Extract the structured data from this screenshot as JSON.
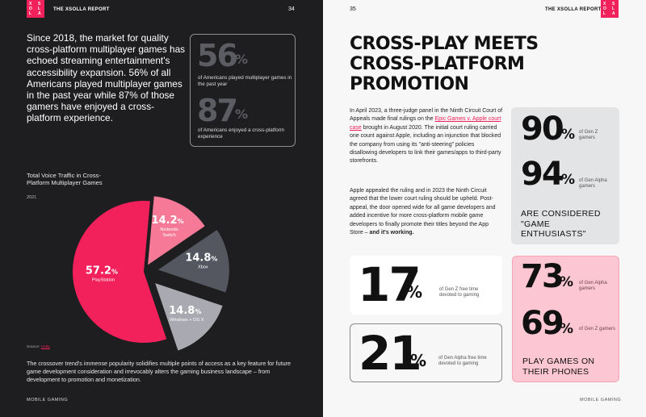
{
  "left_page": {
    "header": "THE XSOLLA REPORT",
    "page_number": "34",
    "logo_letters": [
      "X",
      "S",
      "O",
      "L",
      "L",
      "A"
    ],
    "intro": "Since 2018, the market for quality cross-platform multiplayer games has echoed streaming entertainment's accessibility expansion. 56% of all Americans played multiplayer games in the past year while 87% of those gamers have enjoyed a cross-platform experience.",
    "stats": [
      {
        "value": "56",
        "unit": "%",
        "caption": "of Americans played multiplayer games in the past year"
      },
      {
        "value": "87",
        "unit": "%",
        "caption": "of Americans enjoyed a cross-platform experience"
      }
    ],
    "source_label": "Source:",
    "source_name": "Unity",
    "closing": "The crossover trend's immense popularity solidifies multiple points of access as a key feature for future game development consideration and irrevocably alters the gaming business landscape – from development to promotion and monetization.",
    "footer": "MOBILE GAMING"
  },
  "chart_data": {
    "type": "pie",
    "title": "Total Voice Traffic in Cross-Platform Multiplayer Games",
    "subtitle": "2021",
    "slices": [
      {
        "label": "PlayStation",
        "value": 57.2,
        "display": "57.2",
        "color": "#f2215c",
        "exploded": false
      },
      {
        "label": "Nintendo Switch",
        "value": 14.2,
        "display": "14.2",
        "color": "#f67a97",
        "exploded": true
      },
      {
        "label": "Xbox",
        "value": 14.8,
        "display": "14.8",
        "color": "#555760",
        "exploded": true
      },
      {
        "label": "Windows + OS X",
        "value": 14.8,
        "display": "14.8",
        "color": "#a9aab1",
        "exploded": true
      }
    ],
    "unit": "%"
  },
  "right_page": {
    "header": "THE XSOLLA REPORT",
    "page_number": "35",
    "logo_letters": [
      "X",
      "S",
      "O",
      "L",
      "L",
      "A"
    ],
    "title_line1": "CROSS-PLAY MEETS",
    "title_line2": "CROSS-PLATFORM PROMOTION",
    "para1_before": "In April 2023, a three-judge panel in the Ninth Circuit Court of Appeals made final rulings on the ",
    "para1_link": "Epic Games v. Apple court case",
    "para1_after": " brought in August 2020. The initial court ruling carried one count against Apple, including an injunction that blocked the company from using its \"anti-steering\" policies disallowing developers to link their games/apps to third-party storefronts.",
    "para2_before": "Apple appealed the ruling and in 2023 the Ninth Circuit agreed that the lower court ruling should be upheld. Post-appeal, the door opened wide for all game developers and added incentive for more cross-platform mobile game developers to finally promote their titles beyond the App Store – ",
    "para2_bold": "and it's working.",
    "grey_card": {
      "stats": [
        {
          "value": "90",
          "unit": "%",
          "caption": "of Gen Z gamers"
        },
        {
          "value": "94",
          "unit": "%",
          "caption": "of Gen Alpha gamers"
        }
      ],
      "claim": "ARE CONSIDERED \"GAME ENTHUSIASTS\""
    },
    "white_card": {
      "value": "17",
      "unit": "%",
      "caption": "of Gen Z free time devoted to gaming"
    },
    "outline_card": {
      "value": "21",
      "unit": "%",
      "caption": "of Gen Alpha free time devoted to gaming"
    },
    "pink_card": {
      "stats": [
        {
          "value": "73",
          "unit": "%",
          "caption": "of Gen Alpha gamers"
        },
        {
          "value": "69",
          "unit": "%",
          "caption": "of Gen Z gamers"
        }
      ],
      "claim": "PLAY GAMES ON THEIR PHONES"
    },
    "footer": "MOBILE GAMING"
  }
}
